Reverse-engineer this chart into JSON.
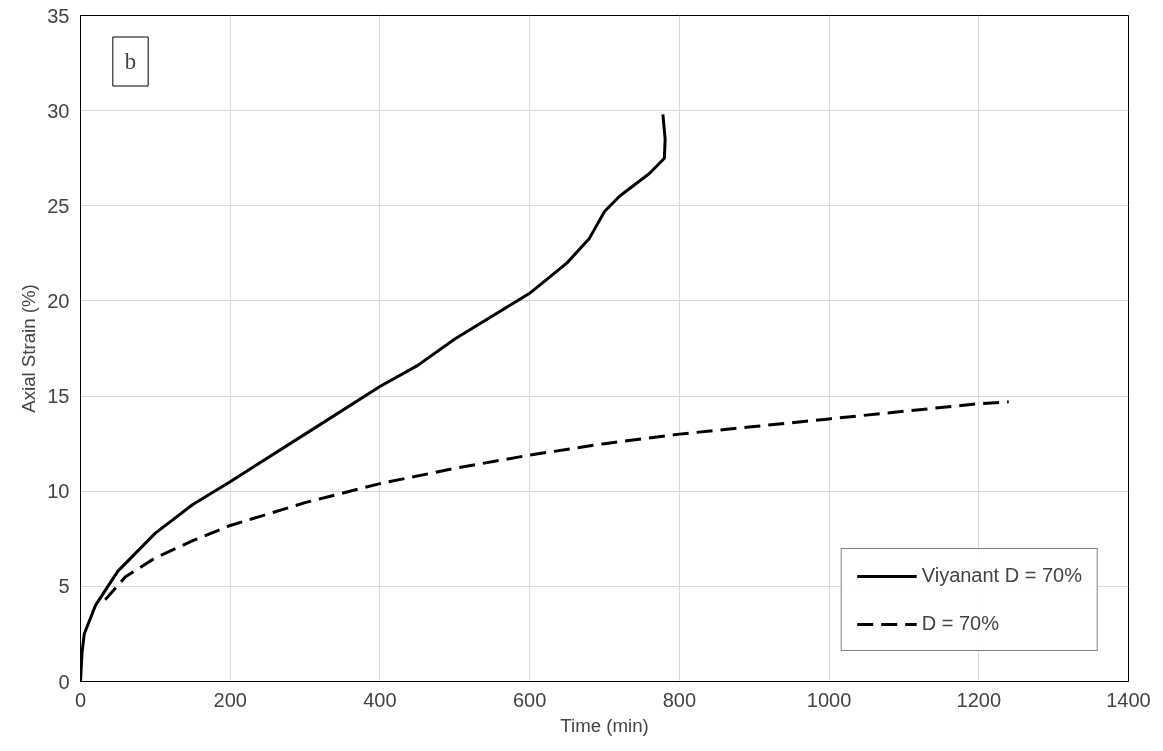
{
  "chart_data": {
    "type": "line",
    "xlabel": "Time (min)",
    "ylabel": "Axial Strain (%)",
    "annotations": [
      "b"
    ],
    "xlim": [
      0,
      1400
    ],
    "xticks": [
      0,
      200,
      400,
      600,
      800,
      1000,
      1200,
      1400
    ],
    "ylim": [
      0,
      35
    ],
    "yticks": [
      0,
      5,
      10,
      15,
      20,
      25,
      30,
      35
    ],
    "grid": true,
    "legend": "bottom right",
    "marker": "none",
    "series": [
      {
        "name": "Viyanant D = 70%",
        "color": "#000000",
        "line_style": "solid",
        "x": [
          0,
          2,
          5,
          20,
          50,
          100,
          150,
          200,
          300,
          400,
          450,
          500,
          600,
          650,
          680,
          700,
          720,
          760,
          780,
          781,
          778
        ],
        "values": [
          0,
          1.5,
          2.5,
          4,
          5.8,
          7.8,
          9.3,
          10.5,
          13,
          15.5,
          16.6,
          18,
          20.4,
          22,
          23.3,
          24.7,
          25.5,
          26.7,
          27.5,
          28.5,
          29.8
        ]
      },
      {
        "name": "D = 70%",
        "color": "#000000",
        "line_style": "dashed",
        "x": [
          33,
          60,
          100,
          150,
          200,
          300,
          400,
          500,
          600,
          700,
          800,
          900,
          1000,
          1100,
          1200,
          1240
        ],
        "values": [
          4.3,
          5.5,
          6.5,
          7.4,
          8.2,
          9.4,
          10.4,
          11.2,
          11.9,
          12.5,
          13,
          13.4,
          13.8,
          14.2,
          14.6,
          14.7
        ]
      }
    ]
  }
}
